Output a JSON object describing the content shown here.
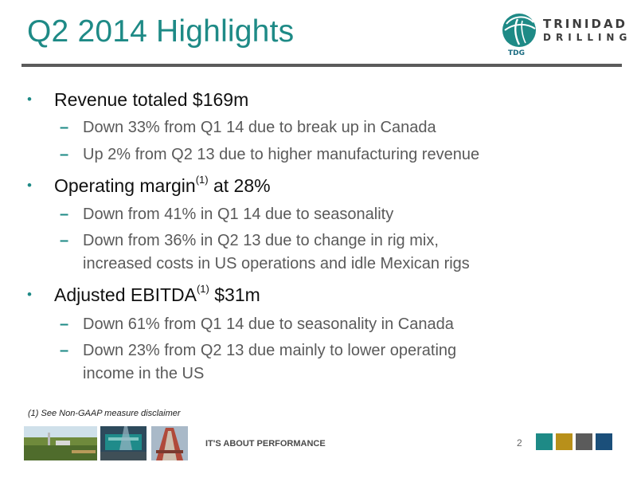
{
  "slide": {
    "title": "Q2 2014 Highlights",
    "logo": {
      "name": "TRINIDAD",
      "sub": "DRILLING",
      "mark": "TDG"
    },
    "bullets": [
      {
        "text": "Revenue totaled $169m",
        "subs": [
          [
            "Down 33% from Q1 14 due to break up in Canada"
          ],
          [
            "Up 2% from Q2 13 due to higher manufacturing revenue"
          ]
        ]
      },
      {
        "text_before": "Operating margin",
        "sup": "(1)",
        "text_after": " at 28%",
        "subs": [
          [
            "Down from 41% in Q1 14 due to seasonality"
          ],
          [
            "Down from 36% in Q2 13 due to change in rig mix,",
            "increased costs in US operations and idle Mexican rigs"
          ]
        ]
      },
      {
        "text_before": "Adjusted EBITDA",
        "sup": "(1)",
        "text_after": " $31m",
        "subs": [
          [
            "Down 61% from Q1 14 due to seasonality in Canada"
          ],
          [
            "Down 23% from Q2 13 due mainly to lower operating",
            "income in the US"
          ]
        ]
      }
    ],
    "bullet_glyph": "•",
    "dash_glyph": "–",
    "footnote": "(1) See Non-GAAP measure disclaimer",
    "footer": {
      "tagline": "IT'S ABOUT PERFORMANCE",
      "page": "2",
      "squares": [
        "#1e8a86",
        "#b8901a",
        "#5b5b5b",
        "#1b4f7a"
      ]
    }
  },
  "colors": {
    "accent": "#1e8a86",
    "rule": "#5b5b5b"
  }
}
